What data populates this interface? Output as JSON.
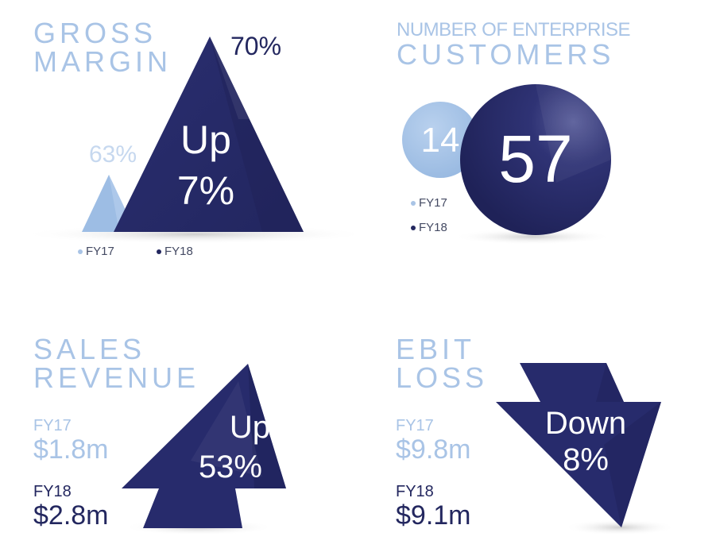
{
  "colors": {
    "dark": "#272b6c",
    "light": "#a9c4e6"
  },
  "gross_margin": {
    "title_line1": "GROSS",
    "title_line2": "MARGIN",
    "fy17_value": "63%",
    "fy18_value": "70%",
    "change_line1": "Up",
    "change_line2": "7%",
    "legend_fy17": "FY17",
    "legend_fy18": "FY18"
  },
  "customers": {
    "title_line1": "NUMBER OF ENTERPRISE",
    "title_line2": "CUSTOMERS",
    "fy17_value": "14",
    "fy18_value": "57",
    "legend_fy17": "FY17",
    "legend_fy18": "FY18"
  },
  "sales": {
    "title_line1": "SALES",
    "title_line2": "REVENUE",
    "fy17_label": "FY17",
    "fy17_value": "$1.8m",
    "fy18_label": "FY18",
    "fy18_value": "$2.8m",
    "change_line1": "Up",
    "change_line2": "53%"
  },
  "ebit": {
    "title_line1": "EBIT",
    "title_line2": "LOSS",
    "fy17_label": "FY17",
    "fy17_value": "$9.8m",
    "fy18_label": "FY18",
    "fy18_value": "$9.1m",
    "change_line1": "Down",
    "change_line2": "8%"
  },
  "chart_data": [
    {
      "type": "bar",
      "title": "GROSS MARGIN",
      "unit": "%",
      "categories": [
        "FY17",
        "FY18"
      ],
      "values": [
        63,
        70
      ],
      "annotation": "Up 7%"
    },
    {
      "type": "bar",
      "title": "NUMBER OF ENTERPRISE CUSTOMERS",
      "categories": [
        "FY17",
        "FY18"
      ],
      "values": [
        14,
        57
      ]
    },
    {
      "type": "bar",
      "title": "SALES REVENUE",
      "unit": "$m",
      "categories": [
        "FY17",
        "FY18"
      ],
      "values": [
        1.8,
        2.8
      ],
      "annotation": "Up 53%"
    },
    {
      "type": "bar",
      "title": "EBIT LOSS",
      "unit": "$m",
      "categories": [
        "FY17",
        "FY18"
      ],
      "values": [
        9.8,
        9.1
      ],
      "annotation": "Down 8%"
    }
  ]
}
